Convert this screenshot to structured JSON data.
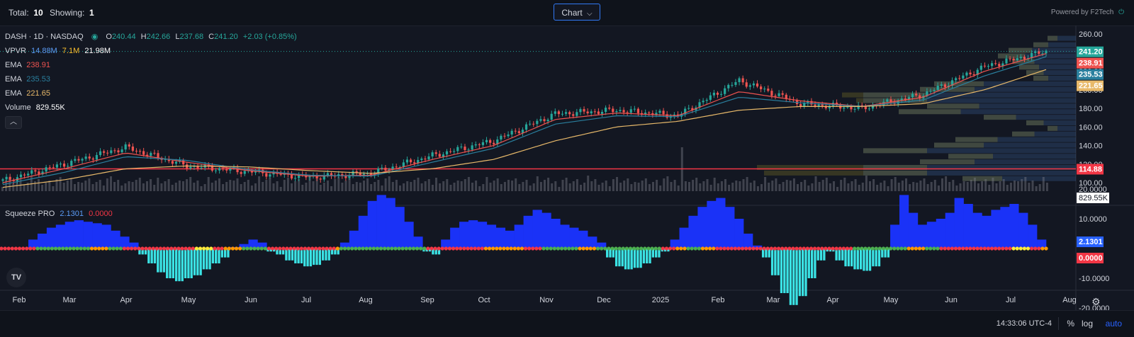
{
  "topbar": {
    "total_label": "Total:",
    "total_value": "10",
    "showing_label": "Showing:",
    "showing_value": "1",
    "chart_button": "Chart",
    "powered_by": "Powered by F2Tech"
  },
  "legend": {
    "symbol": "DASH · 1D · NASDAQ",
    "o_label": "O",
    "o_value": "240.44",
    "h_label": "H",
    "h_value": "242.66",
    "l_label": "L",
    "l_value": "237.68",
    "c_label": "C",
    "c_value": "241.20",
    "change": "+2.03 (+0.85%)",
    "vpvr_label": "VPVR",
    "vpvr_1": "14.88M",
    "vpvr_2": "7.1M",
    "vpvr_3": "21.98M",
    "ema1_label": "EMA",
    "ema1_value": "238.91",
    "ema2_label": "EMA",
    "ema2_value": "235.53",
    "ema3_label": "EMA",
    "ema3_value": "221.65",
    "volume_label": "Volume",
    "volume_value": "829.55K",
    "squeeze_label": "Squeeze PRO",
    "squeeze_val1": "2.1301",
    "squeeze_val2": "0.0000"
  },
  "bottombar": {
    "time": "14:33:06 UTC-4",
    "percent": "%",
    "log": "log",
    "auto": "auto"
  },
  "colors": {
    "up": "#26a69a",
    "down": "#ef5350",
    "ema_fast": "#ef5350",
    "ema_mid": "#2a7f9e",
    "ema_slow": "#e8b96a",
    "support_line": "#f23645",
    "squeeze_pos": "#1a32f7",
    "squeeze_neg": "#3be3e5",
    "dot_green": "#4caf50",
    "dot_red": "#f23645",
    "dot_orange": "#ff9800",
    "dot_yellow": "#ffeb3b"
  },
  "chart_data": [
    {
      "type": "line",
      "title": "DASH · 1D · NASDAQ",
      "y_ticks": [
        "260.00",
        "240.00",
        "220.00",
        "200.00",
        "180.00",
        "160.00",
        "140.00",
        "120.00",
        "100.00"
      ],
      "ylim": [
        90,
        265
      ],
      "x_ticks": [
        "Feb",
        "Mar",
        "Apr",
        "May",
        "Jun",
        "Jul",
        "Aug",
        "Sep",
        "Oct",
        "Nov",
        "Dec",
        "2025",
        "Feb",
        "Mar",
        "Apr",
        "May",
        "Jun",
        "Jul",
        "Aug"
      ],
      "series": [
        {
          "name": "Close",
          "x": [
            "Feb 2024",
            "Mar 2024",
            "Apr 2024",
            "May 2024",
            "Jun 2024",
            "Jul 2024",
            "Aug 2024",
            "Sep 2024",
            "Oct 2024",
            "Nov 2024",
            "Dec 2024",
            "Jan 2025",
            "Feb 2025",
            "Mar 2025",
            "Apr 2025",
            "May 2025",
            "Jun 2025",
            "Jul 2025"
          ],
          "values": [
            102,
            120,
            138,
            118,
            112,
            106,
            110,
            129,
            145,
            174,
            178,
            172,
            210,
            185,
            180,
            195,
            225,
            241.2
          ]
        },
        {
          "name": "EMA",
          "values": [
            100,
            115,
            132,
            122,
            113,
            107,
            108,
            125,
            140,
            168,
            175,
            172,
            198,
            188,
            182,
            192,
            220,
            238.91
          ]
        },
        {
          "name": "EMA",
          "values": [
            98,
            111,
            128,
            124,
            114,
            108,
            107,
            122,
            137,
            163,
            172,
            171,
            192,
            186,
            182,
            189,
            215,
            235.53
          ]
        },
        {
          "name": "EMA",
          "values": [
            95,
            103,
            115,
            118,
            117,
            113,
            110,
            115,
            125,
            145,
            160,
            166,
            178,
            182,
            182,
            185,
            200,
            221.65
          ]
        }
      ],
      "price_labels": [
        {
          "value": 241.2,
          "text": "241.20",
          "color": "#26a69a"
        },
        {
          "value": 238.91,
          "text": "238.91",
          "color": "#ef5350"
        },
        {
          "value": 235.53,
          "text": "235.53",
          "color": "#2a7f9e"
        },
        {
          "value": 221.65,
          "text": "221.65",
          "color": "#e8b96a"
        },
        {
          "value": 114.88,
          "text": "114.88",
          "color": "#f23645"
        }
      ],
      "horizontal_line": 114.88,
      "volume_label": "829.55K"
    },
    {
      "type": "bar",
      "title": "Squeeze PRO",
      "y_ticks": [
        "20.0000",
        "10.0000",
        "-10.0000",
        "-20.0000"
      ],
      "ylim": [
        -20,
        20
      ],
      "x_ticks": [
        "Feb",
        "Mar",
        "Apr",
        "May",
        "Jun",
        "Jul",
        "Aug",
        "Sep",
        "Oct",
        "Nov",
        "Dec",
        "2025",
        "Feb",
        "Mar",
        "Apr",
        "May",
        "Jun",
        "Jul",
        "Aug"
      ],
      "values": [
        3,
        5,
        7,
        8,
        9,
        9.5,
        9,
        8.5,
        8,
        6,
        4,
        2,
        -2,
        -5,
        -8,
        -10,
        -11,
        -10,
        -9,
        -7,
        -5,
        -3,
        0.5,
        1.5,
        3,
        2,
        -1,
        -2,
        -4,
        -5,
        -6,
        -5.5,
        -4,
        -2,
        2,
        6,
        11,
        16,
        18,
        17,
        14,
        9,
        4,
        -1,
        -2,
        3,
        7,
        9,
        9.5,
        9,
        8,
        7,
        6,
        8,
        11,
        13,
        12,
        10,
        8,
        7,
        6,
        4,
        2,
        -3,
        -6,
        -7,
        -6.5,
        -5,
        -3,
        -1,
        3,
        7,
        11,
        14,
        16,
        17,
        14,
        10,
        5,
        1,
        -3,
        -9,
        -15,
        -19,
        -16,
        -10,
        -4,
        -1,
        -4,
        -6,
        -7,
        -7.5,
        -6,
        -3,
        8,
        18,
        12,
        8,
        9,
        10,
        12,
        17,
        15,
        12,
        11,
        13,
        14,
        15,
        12,
        8,
        3
      ],
      "last_values": [
        "2.1301",
        "0.0000"
      ]
    }
  ]
}
